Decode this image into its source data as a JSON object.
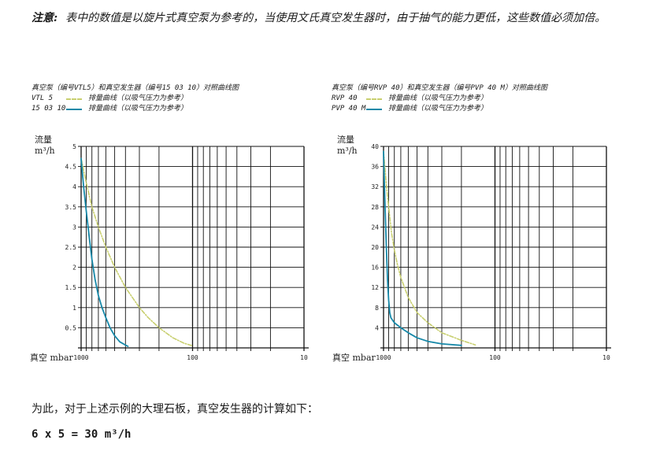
{
  "note": {
    "label": "注意:",
    "text": "表中的数值是以旋片式真空泵为参考的，当使用文氏真空发生器时，由于抽气的能力更低，这些数值必须加倍。"
  },
  "left_legend": {
    "heading": "真空泵（编号VTL5）和真空发生器（编号15 03 10）对照曲线图",
    "items": [
      {
        "code": "VTL 5",
        "text": "排量曲线（以吸气压力为参考）"
      },
      {
        "code": "15 03 10",
        "text": "排量曲线（以吸气压力为参考）"
      }
    ]
  },
  "right_legend": {
    "heading": "真空泵（编号RVP 40）和真空发生器（编号PVP 40 M）对照曲线图",
    "items": [
      {
        "code": "RVP 40",
        "text": "排量曲线（以吸气压力为参考）"
      },
      {
        "code": "PVP 40 M",
        "text": "排量曲线（以吸气压力为参考）"
      }
    ]
  },
  "colors": {
    "pump": "#c8cf6f",
    "generator": "#1688a8",
    "grid": "#111111"
  },
  "chart_data": [
    {
      "type": "line",
      "title": "真空泵（编号VTL5）和真空发生器（编号15 03 10）对照曲线图",
      "ylabel_line1": "流量",
      "ylabel_line2": "m³/h",
      "xlabel": "真空 mbar",
      "x_scale": "log-reversed",
      "xlim": [
        1000,
        10
      ],
      "ylim": [
        0,
        5
      ],
      "x_ticks": [
        "1000",
        "100",
        "10"
      ],
      "y_ticks": [
        "5",
        "4.5",
        "4",
        "3.5",
        "3",
        "2.5",
        "2",
        "1.5",
        "1",
        "0.5"
      ],
      "series": [
        {
          "name": "VTL 5",
          "style": "dashed",
          "points": [
            [
              1000,
              4.7
            ],
            [
              900,
              4.1
            ],
            [
              800,
              3.5
            ],
            [
              700,
              3.0
            ],
            [
              600,
              2.5
            ],
            [
              500,
              2.0
            ],
            [
              400,
              1.5
            ],
            [
              300,
              1.0
            ],
            [
              250,
              0.75
            ],
            [
              200,
              0.5
            ],
            [
              150,
              0.25
            ],
            [
              120,
              0.12
            ],
            [
              100,
              0.05
            ]
          ]
        },
        {
          "name": "15 03 10",
          "style": "solid",
          "points": [
            [
              1000,
              4.7
            ],
            [
              950,
              4.0
            ],
            [
              900,
              3.4
            ],
            [
              850,
              2.8
            ],
            [
              800,
              2.2
            ],
            [
              750,
              1.7
            ],
            [
              700,
              1.3
            ],
            [
              650,
              1.0
            ],
            [
              600,
              0.75
            ],
            [
              550,
              0.5
            ],
            [
              500,
              0.3
            ],
            [
              450,
              0.15
            ],
            [
              400,
              0.07
            ],
            [
              380,
              0.04
            ]
          ]
        }
      ]
    },
    {
      "type": "line",
      "title": "真空泵（编号RVP 40）和真空发生器（编号PVP 40 M）对照曲线图",
      "ylabel_line1": "流量",
      "ylabel_line2": "m³/h",
      "xlabel": "真空 mbar",
      "x_scale": "log-reversed",
      "xlim": [
        1000,
        10
      ],
      "ylim": [
        0,
        40
      ],
      "x_ticks": [
        "1000",
        "100",
        "10"
      ],
      "y_ticks": [
        "40",
        "36",
        "32",
        "28",
        "24",
        "20",
        "16",
        "12",
        "8",
        "4"
      ],
      "series": [
        {
          "name": "RVP 40",
          "style": "dashed",
          "points": [
            [
              1000,
              39
            ],
            [
              950,
              33
            ],
            [
              900,
              28
            ],
            [
              850,
              23
            ],
            [
              800,
              19.5
            ],
            [
              750,
              16.5
            ],
            [
              700,
              14
            ],
            [
              600,
              10
            ],
            [
              500,
              7
            ],
            [
              400,
              5
            ],
            [
              300,
              3
            ],
            [
              200,
              1.5
            ],
            [
              150,
              0.6
            ]
          ]
        },
        {
          "name": "PVP 40 M",
          "style": "solid",
          "points": [
            [
              1000,
              39
            ],
            [
              980,
              32
            ],
            [
              960,
              25
            ],
            [
              940,
              19
            ],
            [
              920,
              13.5
            ],
            [
              900,
              9.5
            ],
            [
              880,
              7
            ],
            [
              860,
              6
            ],
            [
              800,
              5
            ],
            [
              700,
              4
            ],
            [
              600,
              3
            ],
            [
              500,
              2
            ],
            [
              400,
              1.3
            ],
            [
              300,
              0.8
            ],
            [
              200,
              0.5
            ]
          ]
        }
      ]
    }
  ],
  "bottom": {
    "text": "为此，对于上述示例的大理石板，真空发生器的计算如下：",
    "formula": "6 x 5 = 30 m³/h"
  }
}
